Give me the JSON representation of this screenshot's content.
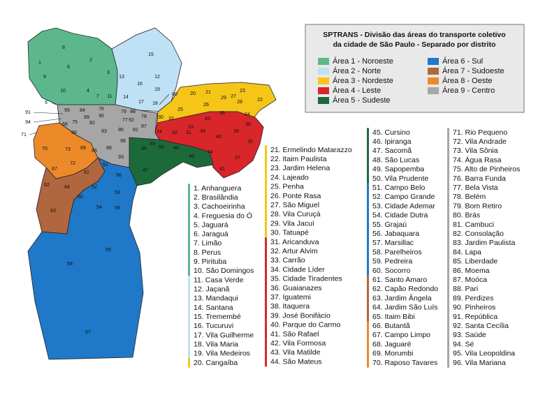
{
  "title": [
    "SPTRANS - Divisão das áreas do transporte coletivo",
    "da cidade de São Paulo - Separado por distrito"
  ],
  "areas": [
    {
      "name": "Área 1 - Noroeste",
      "color": "#5cb88c",
      "districts": [
        {
          "label": "1. Anhanguera",
          "map": "1"
        },
        {
          "label": "2. Brasilândia",
          "map": "2"
        },
        {
          "label": "3. Cachoeirinha",
          "map": "3"
        },
        {
          "label": "4. Freguesia do Ó",
          "map": "4"
        },
        {
          "label": "5. Jaguará",
          "map": "5"
        },
        {
          "label": "6. Jaraguá",
          "map": "6"
        },
        {
          "label": "7. Limão",
          "map": "7"
        },
        {
          "label": "8. Perus",
          "map": "8"
        },
        {
          "label": "9. Pirituba",
          "map": "9"
        },
        {
          "label": "10. São Domingos",
          "map": "10"
        }
      ]
    },
    {
      "name": "Área 2 - Norte",
      "color": "#bfe1f6",
      "districts": [
        {
          "label": "11. Casa Verde",
          "map": "11"
        },
        {
          "label": "12. Jaçanã",
          "map": "12"
        },
        {
          "label": "13. Mandaqui",
          "map": "13"
        },
        {
          "label": "14. Santana",
          "map": "14"
        },
        {
          "label": "15. Tremembé",
          "map": "15"
        },
        {
          "label": "16. Tucuruvi",
          "map": "16"
        },
        {
          "label": "17. Vila Guilherme",
          "map": "17"
        },
        {
          "label": "18. Vila Maria",
          "map": "18"
        },
        {
          "label": "19. Vila Medeiros",
          "map": "19"
        }
      ]
    },
    {
      "name": "Área 3 - Nordeste",
      "color": "#f5c518",
      "districts": [
        {
          "label": "20. Cangaíba",
          "map": "20"
        },
        {
          "label": "21. Ermelindo Matarazzo",
          "map": "21"
        },
        {
          "label": "22. Itaim Paulista",
          "map": "22"
        },
        {
          "label": "23. Jardim Helena",
          "map": "23"
        },
        {
          "label": "24. Lajeado",
          "map": "24"
        },
        {
          "label": "25. Penha",
          "map": "25"
        },
        {
          "label": "26. Ponte Rasa",
          "map": "26"
        },
        {
          "label": "27. São Miguel",
          "map": "27"
        },
        {
          "label": "28. Vila Curuçá",
          "map": "28"
        },
        {
          "label": "29. Vila Jacuí",
          "map": "29"
        },
        {
          "label": "30. Tatuapé",
          "map": "30"
        }
      ]
    },
    {
      "name": "Área 4 - Leste",
      "color": "#d8262b",
      "districts": [
        {
          "label": "31. Aricanduva",
          "map": "31"
        },
        {
          "label": "32. Artur Alvim",
          "map": "32"
        },
        {
          "label": "33. Carrão",
          "map": "33"
        },
        {
          "label": "34. Cidade Líder",
          "map": "34"
        },
        {
          "label": "35. Cidade Tiradentes",
          "map": "35"
        },
        {
          "label": "36. Guaianazes",
          "map": "36"
        },
        {
          "label": "37. Iguatemi",
          "map": "37"
        },
        {
          "label": "38. Itaquera",
          "map": "38"
        },
        {
          "label": "39. José Bonifácio",
          "map": "39"
        },
        {
          "label": "40. Parque do Carmo",
          "map": "40"
        },
        {
          "label": "41. São Rafael",
          "map": "41"
        },
        {
          "label": "42. Vila Formosa",
          "map": "42"
        },
        {
          "label": "43. Vila Matilde",
          "map": "43"
        },
        {
          "label": "44. São Mateus",
          "map": "44"
        }
      ]
    },
    {
      "name": "Área 5 - Sudeste",
      "color": "#1c6a3a",
      "districts": [
        {
          "label": "45. Cursino",
          "map": "45"
        },
        {
          "label": "46. Ipiranga",
          "map": "46"
        },
        {
          "label": "47. Sacomã",
          "map": "47"
        },
        {
          "label": "48. São Lucas",
          "map": "48"
        },
        {
          "label": "49. Sapopemba",
          "map": "49"
        },
        {
          "label": "50. Vila Prudente",
          "map": "50"
        }
      ]
    },
    {
      "name": "Área 6 - Sul",
      "color": "#1f78c8",
      "districts": [
        {
          "label": "51. Campo Belo",
          "map": "51"
        },
        {
          "label": "52. Campo Grande",
          "map": "52"
        },
        {
          "label": "53. Cidade Ademar",
          "map": "53"
        },
        {
          "label": "54. Cidade Dutra",
          "map": "54"
        },
        {
          "label": "55. Grajaú",
          "map": "55"
        },
        {
          "label": "56. Jabaquara",
          "map": "56"
        },
        {
          "label": "57. Marsillac",
          "map": "57"
        },
        {
          "label": "58. Parelheiros",
          "map": "58"
        },
        {
          "label": "59. Pedreira",
          "map": "59"
        },
        {
          "label": "60. Socorro",
          "map": "60"
        }
      ]
    },
    {
      "name": "Área 7 - Sudoeste",
      "color": "#b0663e",
      "districts": [
        {
          "label": "61. Santo Amaro",
          "map": "61"
        },
        {
          "label": "62. Capão Redondo",
          "map": "62"
        },
        {
          "label": "63. Jardim Ângela",
          "map": "63"
        },
        {
          "label": "64. Jardim São Luís",
          "map": "64"
        },
        {
          "label": "65. Itaim Bibi",
          "map": "65"
        }
      ]
    },
    {
      "name": "Área 8 - Oeste",
      "color": "#ec8a2a",
      "districts": [
        {
          "label": "66. Butantã",
          "map": "66"
        },
        {
          "label": "67. Campo Limpo",
          "map": "67"
        },
        {
          "label": "68. Jaguaré",
          "map": "68"
        },
        {
          "label": "69. Morumbi",
          "map": "69"
        },
        {
          "label": "70. Raposo Tavares",
          "map": "70"
        }
      ]
    },
    {
      "name": "Área 9 - Centro",
      "color": "#a6a6a6",
      "districts": [
        {
          "label": "71. Rio Pequeno",
          "map": "71"
        },
        {
          "label": "72. Vila Andrade",
          "map": "72"
        },
        {
          "label": "73. Vila Sônia",
          "map": "73"
        },
        {
          "label": "74. Água Rasa",
          "map": "74"
        },
        {
          "label": "75. Alto de Pinheiros",
          "map": "75"
        },
        {
          "label": "76. Barra Funda",
          "map": "76"
        },
        {
          "label": "77. Bela Vista",
          "map": "77"
        },
        {
          "label": "78. Belém",
          "map": "78"
        },
        {
          "label": "79. Bom Retiro",
          "map": "79"
        },
        {
          "label": "80. Brás",
          "map": "80"
        },
        {
          "label": "81. Cambuci",
          "map": "81"
        },
        {
          "label": "82. Consolação",
          "map": "82"
        },
        {
          "label": "83. Jardim Paulista",
          "map": "83"
        },
        {
          "label": "84. Lapa",
          "map": "84"
        },
        {
          "label": "85. Liberdade",
          "map": "85"
        },
        {
          "label": "86. Moema",
          "map": "86"
        },
        {
          "label": "87. Moóca",
          "map": "87"
        },
        {
          "label": "88. Pari",
          "map": "88"
        },
        {
          "label": "89. Perdizes",
          "map": "89"
        },
        {
          "label": "90. Pinheiros",
          "map": "90"
        },
        {
          "label": "91. República",
          "map": "91"
        },
        {
          "label": "92. Santa Cecília",
          "map": "92"
        },
        {
          "label": "93. Saúde",
          "map": "93"
        },
        {
          "label": "94. Sé",
          "map": "94"
        },
        {
          "label": "95. Vila Leopoldina",
          "map": "95"
        },
        {
          "label": "96. Vila Mariana",
          "map": "96"
        }
      ]
    }
  ]
}
